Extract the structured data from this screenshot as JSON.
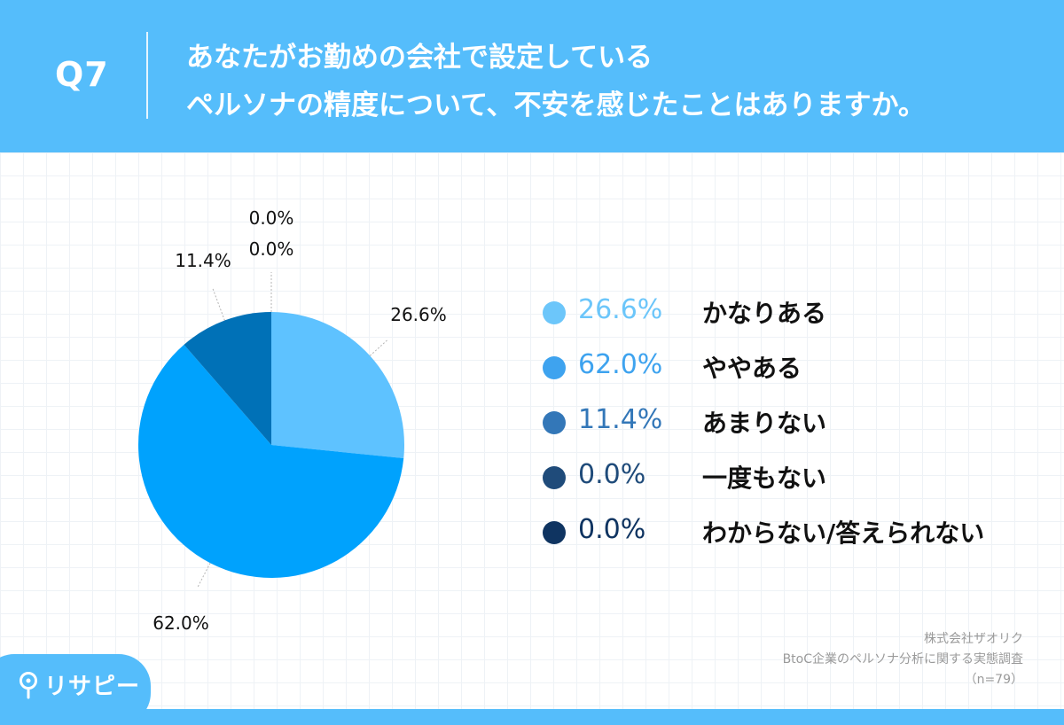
{
  "header": {
    "q_label": "Q7",
    "title_line1": "あなたがお勤めの会社で設定している",
    "title_line2": "ペルソナの精度について、不安を感じたことはありますか。"
  },
  "chart_data": {
    "type": "pie",
    "title": "",
    "slices": [
      {
        "label": "かなりある",
        "value": 26.6,
        "display": "26.6%",
        "color": "#5ec2ff"
      },
      {
        "label": "ややある",
        "value": 62.0,
        "display": "62.0%",
        "color": "#00a2fd"
      },
      {
        "label": "あまりない",
        "value": 11.4,
        "display": "11.4%",
        "color": "#0071b7"
      },
      {
        "label": "一度もない",
        "value": 0.0,
        "display": "0.0%",
        "color": "#1f4b7a"
      },
      {
        "label": "わからない/答えられない",
        "value": 0.0,
        "display": "0.0%",
        "color": "#0f3461"
      }
    ],
    "legend_position": "right",
    "legend_colors": [
      "#6cc6fa",
      "#3ea3ef",
      "#3377b8",
      "#1f4b7a",
      "#0f3461"
    ]
  },
  "source": {
    "line1": "株式会社ザオリク",
    "line2": "BtoC企業のペルソナ分析に関する実態調査",
    "line3": "（n=79）"
  },
  "logo": {
    "text": "リサピー",
    "icon": "pin-icon"
  },
  "colors": {
    "background": "#55bdfb",
    "panel": "#ffffff"
  }
}
